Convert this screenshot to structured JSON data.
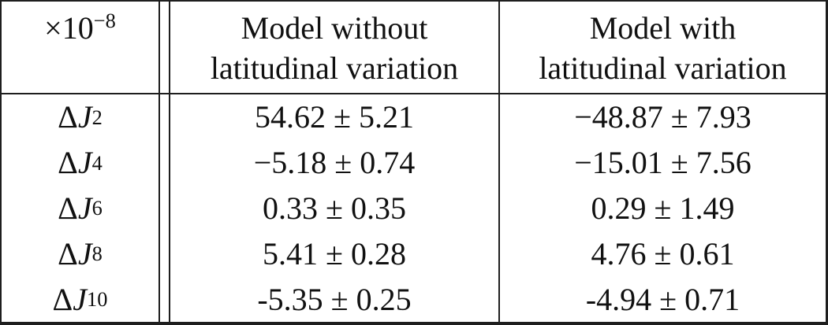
{
  "table": {
    "unit": {
      "base": "×10",
      "exp": "−8"
    },
    "columns": [
      {
        "line1": "Model without",
        "line2": "latitudinal variation"
      },
      {
        "line1": "Model with",
        "line2": "latitudinal variation"
      }
    ],
    "rows": [
      {
        "delta": "Δ",
        "j": "J",
        "sub": "2",
        "without": "54.62 ± 5.21",
        "with": "−48.87 ± 7.93"
      },
      {
        "delta": "Δ",
        "j": "J",
        "sub": "4",
        "without": "−5.18 ± 0.74",
        "with": "−15.01 ± 7.56"
      },
      {
        "delta": "Δ",
        "j": "J",
        "sub": "6",
        "without": "0.33 ± 0.35",
        "with": "0.29 ± 1.49"
      },
      {
        "delta": "Δ",
        "j": "J",
        "sub": "8",
        "without": "5.41 ± 0.28",
        "with": "4.76 ± 0.61"
      },
      {
        "delta": "Δ",
        "j": "J",
        "sub": "10",
        "without": "-5.35 ± 0.25",
        "with": "-4.94 ± 0.71"
      }
    ],
    "colors": {
      "border": "#1e1e1e",
      "text": "#111111",
      "background": "#ffffff"
    }
  }
}
